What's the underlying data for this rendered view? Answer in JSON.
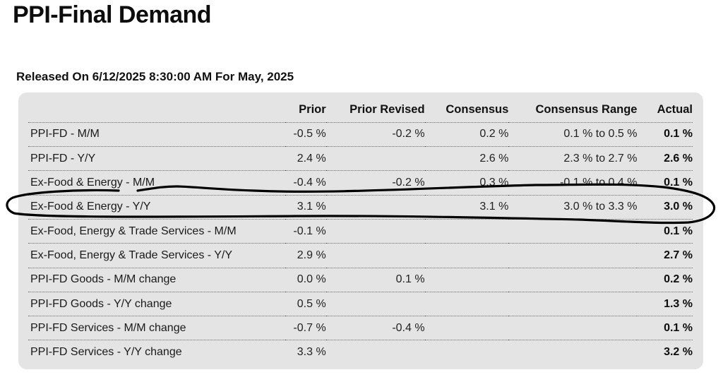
{
  "page": {
    "title": "PPI-Final Demand",
    "release_line": "Released On 6/12/2025 8:30:00 AM For May, 2025"
  },
  "table": {
    "headers": {
      "label": "",
      "prior": "Prior",
      "prior_revised": "Prior Revised",
      "consensus": "Consensus",
      "consensus_range": "Consensus Range",
      "actual": "Actual"
    },
    "rows": [
      {
        "label": "PPI-FD - M/M",
        "prior": "-0.5 %",
        "prior_revised": "-0.2 %",
        "consensus": "0.2 %",
        "consensus_range": "0.1 % to 0.5 %",
        "actual": "0.1 %"
      },
      {
        "label": "PPI-FD - Y/Y",
        "prior": "2.4 %",
        "prior_revised": "",
        "consensus": "2.6 %",
        "consensus_range": "2.3 % to 2.7 %",
        "actual": "2.6 %"
      },
      {
        "label": "Ex-Food & Energy - M/M",
        "prior": "-0.4 %",
        "prior_revised": "-0.2 %",
        "consensus": "0.3 %",
        "consensus_range": "-0.1 % to 0.4 %",
        "actual": "0.1 %"
      },
      {
        "label": "Ex-Food & Energy - Y/Y",
        "prior": "3.1 %",
        "prior_revised": "",
        "consensus": "3.1 %",
        "consensus_range": "3.0 % to 3.3 %",
        "actual": "3.0 %"
      },
      {
        "label": "Ex-Food, Energy & Trade Services - M/M",
        "prior": "-0.1 %",
        "prior_revised": "",
        "consensus": "",
        "consensus_range": "",
        "actual": "0.1 %"
      },
      {
        "label": "Ex-Food, Energy & Trade Services - Y/Y",
        "prior": "2.9 %",
        "prior_revised": "",
        "consensus": "",
        "consensus_range": "",
        "actual": "2.7 %"
      },
      {
        "label": "PPI-FD Goods - M/M change",
        "prior": "0.0 %",
        "prior_revised": "0.1 %",
        "consensus": "",
        "consensus_range": "",
        "actual": "0.2 %"
      },
      {
        "label": "PPI-FD Goods - Y/Y change",
        "prior": "0.5 %",
        "prior_revised": "",
        "consensus": "",
        "consensus_range": "",
        "actual": "1.3 %"
      },
      {
        "label": "PPI-FD Services - M/M change",
        "prior": "-0.7 %",
        "prior_revised": "-0.4 %",
        "consensus": "",
        "consensus_range": "",
        "actual": "0.1 %"
      },
      {
        "label": "PPI-FD Services - Y/Y change",
        "prior": "3.3 %",
        "prior_revised": "",
        "consensus": "",
        "consensus_range": "",
        "actual": "3.2 %"
      }
    ]
  },
  "annotation": {
    "type": "hand-drawn-circle",
    "highlighted_row": "Ex-Food & Energy - Y/Y",
    "stroke_color": "#000000"
  }
}
